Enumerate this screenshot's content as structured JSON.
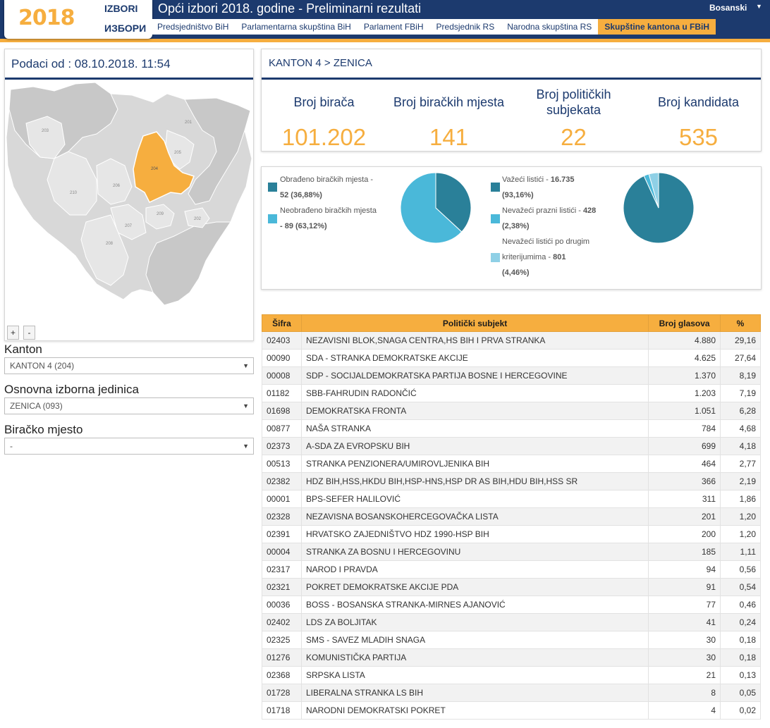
{
  "header": {
    "logo_top": "IZBORI",
    "logo_year": "2018",
    "logo_bottom": "ИЗБОРИ",
    "title": "Opći izbori 2018. godine - Preliminarni rezultati",
    "language": "Bosanski",
    "tabs": [
      {
        "label": "Predsjedništvo BiH",
        "active": false
      },
      {
        "label": "Parlamentarna skupština BiH",
        "active": false
      },
      {
        "label": "Parlament FBiH",
        "active": false
      },
      {
        "label": "Predsjednik RS",
        "active": false
      },
      {
        "label": "Narodna skupština RS",
        "active": false
      },
      {
        "label": "Skupštine kantona u FBiH",
        "active": true
      }
    ]
  },
  "left": {
    "date": "Podaci od : 08.10.2018. 11:54",
    "zoom_in": "+",
    "zoom_out": "-",
    "map_labels": [
      "201",
      "202",
      "203",
      "204",
      "205",
      "206",
      "207",
      "208",
      "209",
      "210"
    ],
    "kanton_label": "Kanton",
    "kanton_value": "KANTON 4 (204)",
    "oij_label": "Osnovna izborna jedinica",
    "oij_value": "ZENICA (093)",
    "bm_label": "Biračko mjesto",
    "bm_value": "-"
  },
  "district": {
    "breadcrumb": "KANTON 4 > ZENICA",
    "stats": [
      {
        "label": "Broj birača",
        "value": "101.202"
      },
      {
        "label": "Broj biračkih mjesta",
        "value": "141"
      },
      {
        "label": "Broj političkih subjekata",
        "value": "22"
      },
      {
        "label": "Broj kandidata",
        "value": "535"
      }
    ]
  },
  "charts": {
    "processed": {
      "items": [
        {
          "label": "Obrađeno biračkih mjesta -",
          "value": "52 (36,88%)",
          "color": "#2a8099"
        },
        {
          "label": "Neobrađeno biračkih mjesta",
          "value": "- 89 (63,12%)",
          "color": "#4ab8d9"
        }
      ]
    },
    "ballots": {
      "items": [
        {
          "label": "Važeći listići -",
          "value": "16.735",
          "pct": "(93,16%)",
          "color": "#2a8099"
        },
        {
          "label": "Nevažeći prazni listići -",
          "value": "428",
          "pct": "(2,38%)",
          "color": "#4ab8d9"
        },
        {
          "label1": "Nevažeći listići po drugim",
          "label2": "kriterijumima -",
          "value": "801",
          "pct": "(4,46%)",
          "color": "#8fd0e6"
        }
      ]
    }
  },
  "chart_data": [
    {
      "type": "pie",
      "categories": [
        "Obrađeno biračkih mjesta",
        "Neobrađeno biračkih mjesta"
      ],
      "values": [
        52,
        89
      ],
      "colors": [
        "#2a8099",
        "#4ab8d9"
      ]
    },
    {
      "type": "pie",
      "categories": [
        "Važeći listići",
        "Nevažeći prazni listići",
        "Nevažeći listići po drugim kriterijumima"
      ],
      "values": [
        16735,
        428,
        801
      ],
      "colors": [
        "#2a8099",
        "#4ab8d9",
        "#8fd0e6"
      ]
    }
  ],
  "table": {
    "headers": [
      "Šifra",
      "Politički subjekt",
      "Broj glasova",
      "%"
    ],
    "rows": [
      [
        "02403",
        "NEZAVISNI BLOK,SNAGA CENTRA,HS BIH I PRVA STRANKA",
        "4.880",
        "29,16"
      ],
      [
        "00090",
        "SDA - STRANKA DEMOKRATSKE AKCIJE",
        "4.625",
        "27,64"
      ],
      [
        "00008",
        "SDP - SOCIJALDEMOKRATSKA PARTIJA BOSNE I HERCEGOVINE",
        "1.370",
        "8,19"
      ],
      [
        "01182",
        "SBB-FAHRUDIN RADONČIĆ",
        "1.203",
        "7,19"
      ],
      [
        "01698",
        "DEMOKRATSKA FRONTA",
        "1.051",
        "6,28"
      ],
      [
        "00877",
        "NAŠA STRANKA",
        "784",
        "4,68"
      ],
      [
        "02373",
        "A-SDA ZA EVROPSKU BIH",
        "699",
        "4,18"
      ],
      [
        "00513",
        "STRANKA PENZIONERA/UMIROVLJENIKA BIH",
        "464",
        "2,77"
      ],
      [
        "02382",
        "HDZ BIH,HSS,HKDU BIH,HSP-HNS,HSP DR AS BIH,HDU BIH,HSS SR",
        "366",
        "2,19"
      ],
      [
        "00001",
        "BPS-SEFER HALILOVIĆ",
        "311",
        "1,86"
      ],
      [
        "02328",
        "NEZAVISNA BOSANSKOHERCEGOVAČKA LISTA",
        "201",
        "1,20"
      ],
      [
        "02391",
        "HRVATSKO ZAJEDNIŠTVO HDZ 1990-HSP BIH",
        "200",
        "1,20"
      ],
      [
        "00004",
        "STRANKA ZA BOSNU I HERCEGOVINU",
        "185",
        "1,11"
      ],
      [
        "02317",
        "NAROD I PRAVDA",
        "94",
        "0,56"
      ],
      [
        "02321",
        "POKRET DEMOKRATSKE AKCIJE PDA",
        "91",
        "0,54"
      ],
      [
        "00036",
        "BOSS - BOSANSKA STRANKA-MIRNES AJANOVIĆ",
        "77",
        "0,46"
      ],
      [
        "02402",
        "LDS ZA BOLJITAK",
        "41",
        "0,24"
      ],
      [
        "02325",
        "SMS - SAVEZ MLADIH SNAGA",
        "30",
        "0,18"
      ],
      [
        "01276",
        "KOMUNISTIČKA PARTIJA",
        "30",
        "0,18"
      ],
      [
        "02368",
        "SRPSKA LISTA",
        "21",
        "0,13"
      ],
      [
        "01728",
        "LIBERALNA STRANKA LS BIH",
        "8",
        "0,05"
      ],
      [
        "01718",
        "NARODNI DEMOKRATSKI POKRET",
        "4",
        "0,02"
      ]
    ]
  }
}
